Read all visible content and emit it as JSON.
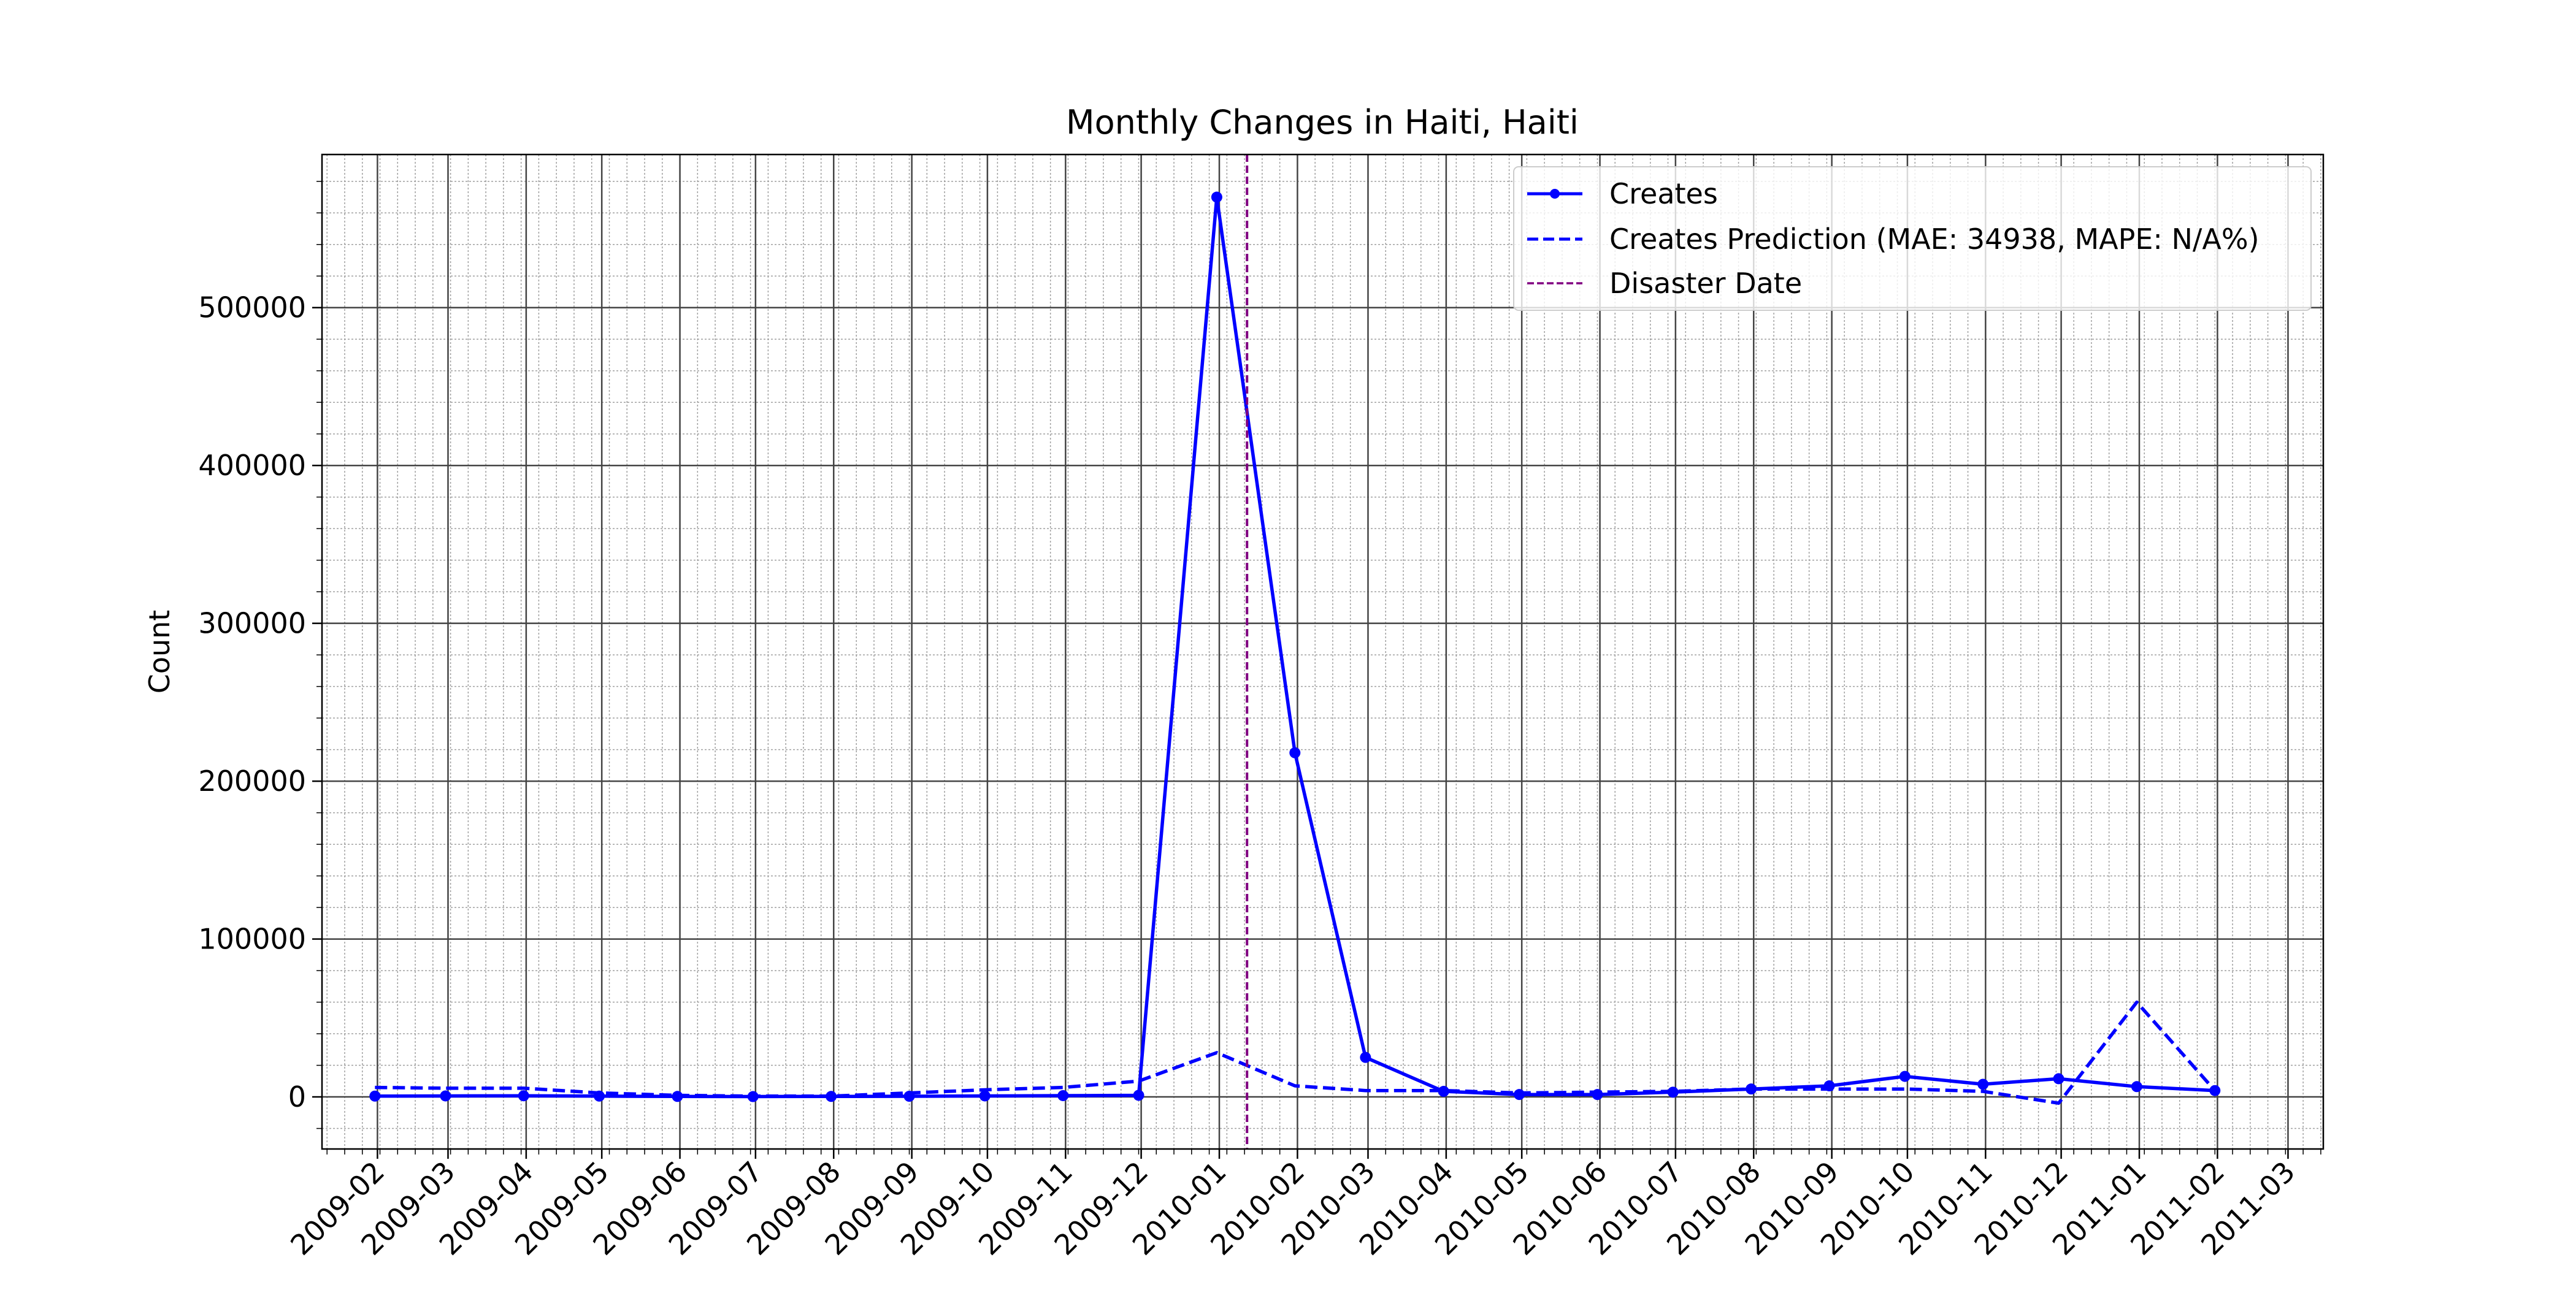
{
  "chart_data": {
    "type": "line",
    "title": "Monthly Changes in Haiti, Haiti",
    "xlabel": "",
    "ylabel": "Count",
    "x_axis_type": "date",
    "xlim": [
      "2009-01-10",
      "2011-03-15"
    ],
    "ylim": [
      -33000,
      597000
    ],
    "grid": "major and minor",
    "legend_position": "top-right",
    "x_tick_labels": [
      "2009-02",
      "2009-03",
      "2009-04",
      "2009-05",
      "2009-06",
      "2009-07",
      "2009-08",
      "2009-09",
      "2009-10",
      "2009-11",
      "2009-12",
      "2010-01",
      "2010-02",
      "2010-03",
      "2010-04",
      "2010-05",
      "2010-06",
      "2010-07",
      "2010-08",
      "2010-09",
      "2010-10",
      "2010-11",
      "2010-12",
      "2011-01",
      "2011-02",
      "2011-03"
    ],
    "y_ticks": [
      0,
      100000,
      200000,
      300000,
      400000,
      500000
    ],
    "y_tick_labels": [
      "0",
      "100000",
      "200000",
      "300000",
      "400000",
      "500000"
    ],
    "x": [
      "2009-01-31",
      "2009-02-28",
      "2009-03-31",
      "2009-04-30",
      "2009-05-31",
      "2009-06-30",
      "2009-07-31",
      "2009-08-31",
      "2009-09-30",
      "2009-10-31",
      "2009-11-30",
      "2009-12-31",
      "2010-01-31",
      "2010-02-28",
      "2010-03-31",
      "2010-04-30",
      "2010-05-31",
      "2010-06-30",
      "2010-07-31",
      "2010-08-31",
      "2010-09-30",
      "2010-10-31",
      "2010-11-30",
      "2010-12-31",
      "2011-01-31"
    ],
    "series": [
      {
        "name": "Creates",
        "style": "solid-with-markers",
        "color": "#0000ff",
        "values": [
          500,
          600,
          700,
          500,
          300,
          200,
          300,
          400,
          600,
          800,
          1000,
          570000,
          218000,
          25000,
          3500,
          1500,
          1500,
          3000,
          5000,
          7000,
          13000,
          8000,
          11500,
          6500,
          4000
        ]
      },
      {
        "name": "Creates Prediction (MAE: 34938, MAPE: N/A%)",
        "style": "dashed",
        "color": "#0000ff",
        "values": [
          6000,
          5500,
          5500,
          2500,
          1000,
          500,
          500,
          2500,
          4500,
          6000,
          10000,
          28000,
          7000,
          4000,
          4000,
          2500,
          3000,
          3500,
          5000,
          5000,
          5000,
          3500,
          -4000,
          60000,
          4000
        ]
      }
    ],
    "annotations": [
      {
        "name": "Disaster Date",
        "type": "vertical-dashed-line",
        "x": "2010-01-12",
        "color": "#800080"
      }
    ]
  }
}
